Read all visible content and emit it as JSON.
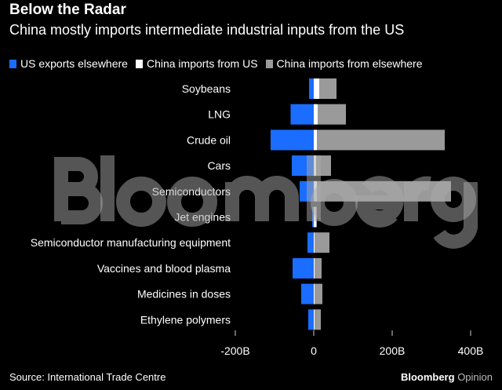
{
  "chart_data": {
    "type": "bar",
    "orientation": "horizontal",
    "stacked": true,
    "title": "Below the Radar",
    "subtitle": "China mostly imports intermediate industrial inputs from the US",
    "categories": [
      "Soybeans",
      "LNG",
      "Crude oil",
      "Cars",
      "Semiconductors",
      "Jet engines",
      "Semiconductor manufacturing equipment",
      "Vaccines and blood plasma",
      "Medicines in doses",
      "Ethylene polymers"
    ],
    "series": [
      {
        "name": "US exports elsewhere",
        "color": "#1a6dff",
        "values": [
          -12,
          -59,
          -110,
          -56,
          -36,
          -4,
          -16,
          -54,
          -32,
          -14
        ]
      },
      {
        "name": "China imports from US",
        "color": "#ffffff",
        "values": [
          14,
          10,
          8,
          6,
          8,
          6,
          2,
          2,
          2,
          2
        ]
      },
      {
        "name": "China imports from elsewhere",
        "color": "#9a9a9a",
        "values": [
          44,
          72,
          326,
          38,
          342,
          2,
          38,
          18,
          20,
          16
        ]
      }
    ],
    "xlim": [
      -250,
      420
    ],
    "xticks": [
      -200,
      0,
      200,
      400
    ],
    "xtick_labels": [
      "-200B",
      "0",
      "200B",
      "400B"
    ],
    "legend": "top-left",
    "grid": false
  },
  "source": "Source: International Trade Centre",
  "brand": {
    "name": "Bloomberg",
    "suffix": "Opinion"
  },
  "watermark": "Bloomberg"
}
